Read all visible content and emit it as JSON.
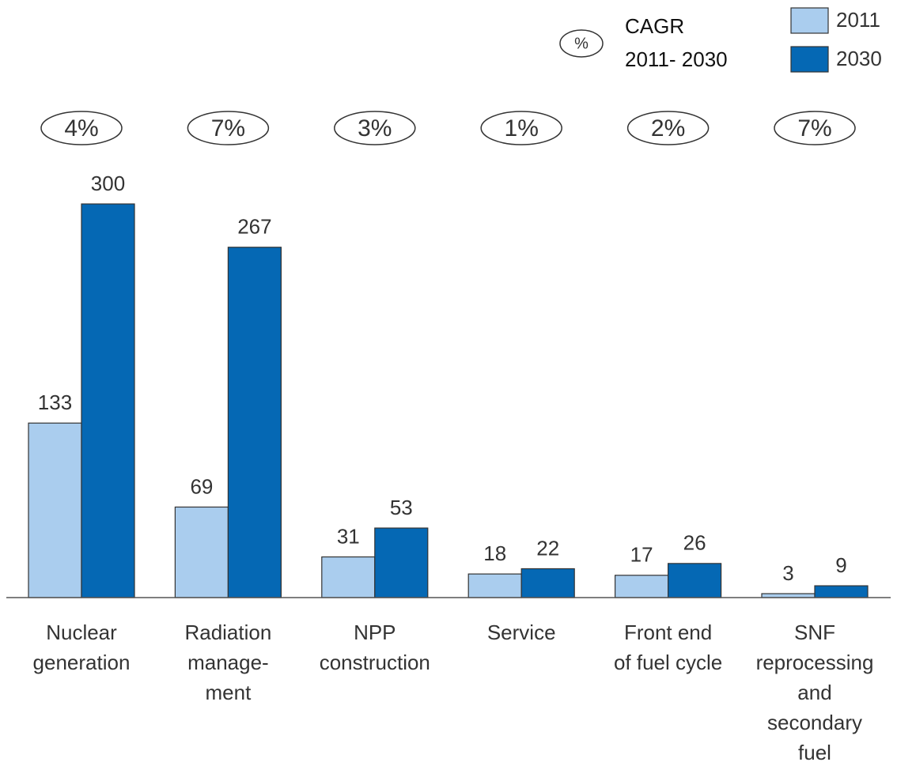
{
  "chart_data": {
    "type": "bar",
    "categories": [
      "Nuclear\ngeneration",
      "Radiation\nmanage-\nment",
      "NPP\nconstruction",
      "Service",
      "Front end\nof fuel cycle",
      "SNF\nreprocessing\nand\nsecondary\nfuel"
    ],
    "series": [
      {
        "name": "2011",
        "color": "#aacdee",
        "values": [
          133,
          69,
          31,
          18,
          17,
          3
        ]
      },
      {
        "name": "2030",
        "color": "#0568b4",
        "values": [
          300,
          267,
          53,
          22,
          26,
          9
        ]
      }
    ],
    "cagr": {
      "values": [
        4,
        7,
        3,
        1,
        2,
        7
      ],
      "value_labels": [
        "4%",
        "7%",
        "3%",
        "1%",
        "2%",
        "7%"
      ]
    },
    "cagr_legend": {
      "symbol": "%",
      "label": "CAGR\n2011- 2030"
    }
  }
}
